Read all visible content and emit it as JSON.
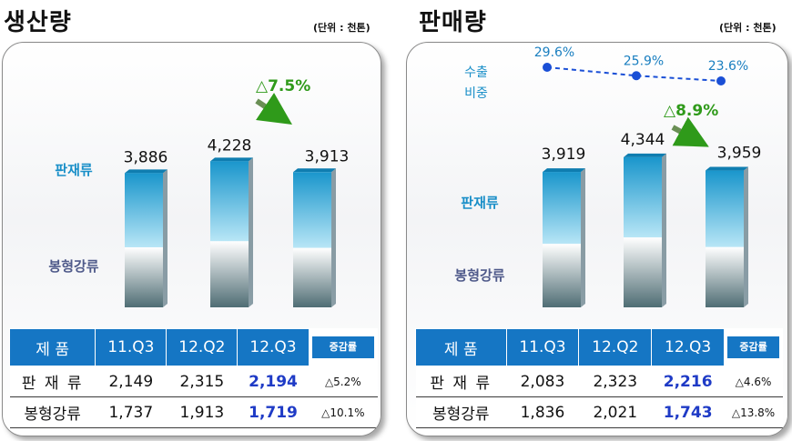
{
  "chart_data": [
    {
      "type": "bar",
      "title": "생산량",
      "unit": "(단위 : 천톤)",
      "categories": [
        "11.Q3",
        "12.Q2",
        "12.Q3"
      ],
      "totals": [
        3886,
        4228,
        3913
      ],
      "total_labels": [
        "3,886",
        "4,228",
        "3,913"
      ],
      "series": [
        {
          "name": "판재류",
          "values": [
            2149,
            2315,
            2194
          ]
        },
        {
          "name": "봉형강류",
          "values": [
            1737,
            1913,
            1719
          ]
        }
      ],
      "change_annotation": "△7.5%",
      "table": {
        "headers": [
          "제  품",
          "11.Q3",
          "12.Q2",
          "12.Q3",
          "증감률"
        ],
        "rows": [
          [
            "판 재 류",
            "2,149",
            "2,315",
            "2,194",
            "△5.2%"
          ],
          [
            "봉형강류",
            "1,737",
            "1,913",
            "1,719",
            "△10.1%"
          ]
        ]
      }
    },
    {
      "type": "bar",
      "title": "판매량",
      "unit": "(단위 : 천톤)",
      "categories": [
        "11.Q3",
        "12.Q2",
        "12.Q3"
      ],
      "totals": [
        3919,
        4344,
        3959
      ],
      "total_labels": [
        "3,919",
        "4,344",
        "3,959"
      ],
      "series": [
        {
          "name": "판재류",
          "values": [
            2083,
            2323,
            2216
          ]
        },
        {
          "name": "봉형강류",
          "values": [
            1836,
            2021,
            1743
          ]
        }
      ],
      "change_annotation": "△8.9%",
      "export_share": {
        "label": "수출 비중",
        "values": [
          29.6,
          25.9,
          23.6
        ],
        "labels": [
          "29.6%",
          "25.9%",
          "23.6%"
        ]
      },
      "table": {
        "headers": [
          "제  품",
          "11.Q3",
          "12.Q2",
          "12.Q3",
          "증감률"
        ],
        "rows": [
          [
            "판 재 류",
            "2,083",
            "2,323",
            "2,216",
            "△4.6%"
          ],
          [
            "봉형강류",
            "1,836",
            "2,021",
            "1,743",
            "△13.8%"
          ]
        ]
      }
    }
  ],
  "colors": {
    "plate_top": "#1a96cc",
    "plate_bottom": "#b8e6f6",
    "bar_gray_top": "#ffffff",
    "bar_gray_bottom": "#4f6d74",
    "table_header": "#1576c4",
    "highlight": "#1f3bc6",
    "annotation_green": "#2f9a1a",
    "line_blue": "#1a4fd6",
    "category_plate": "#1a8fc8",
    "category_rebar": "#4f5a8a"
  }
}
